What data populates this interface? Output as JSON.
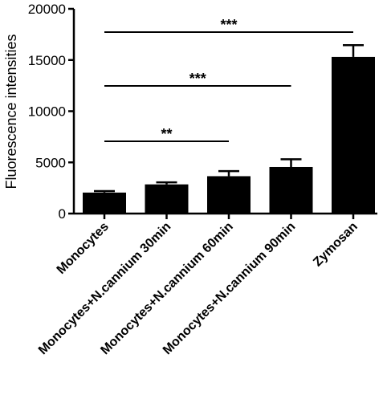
{
  "chart_data": {
    "type": "bar",
    "categories": [
      "Monocytes",
      "Monocytes+N.cannium 30min",
      "Monocytes+N.cannium 60min",
      "Monocytes+N.cannium 90min",
      "Zymosan"
    ],
    "values": [
      2050,
      2850,
      3650,
      4550,
      15300
    ],
    "errors": [
      150,
      200,
      500,
      750,
      1150
    ],
    "ylabel": "Fluorescence intensities",
    "ylim": [
      0,
      20000
    ],
    "yticks": [
      0,
      5000,
      10000,
      15000,
      20000
    ],
    "ytick_labels": [
      "0",
      "5000",
      "10000",
      "15000",
      "20000"
    ],
    "bar_color": "#000000",
    "grid": false,
    "significance": [
      {
        "from": 0,
        "to": 2,
        "label": "**"
      },
      {
        "from": 0,
        "to": 3,
        "label": "***"
      },
      {
        "from": 0,
        "to": 4,
        "label": "***"
      }
    ]
  }
}
